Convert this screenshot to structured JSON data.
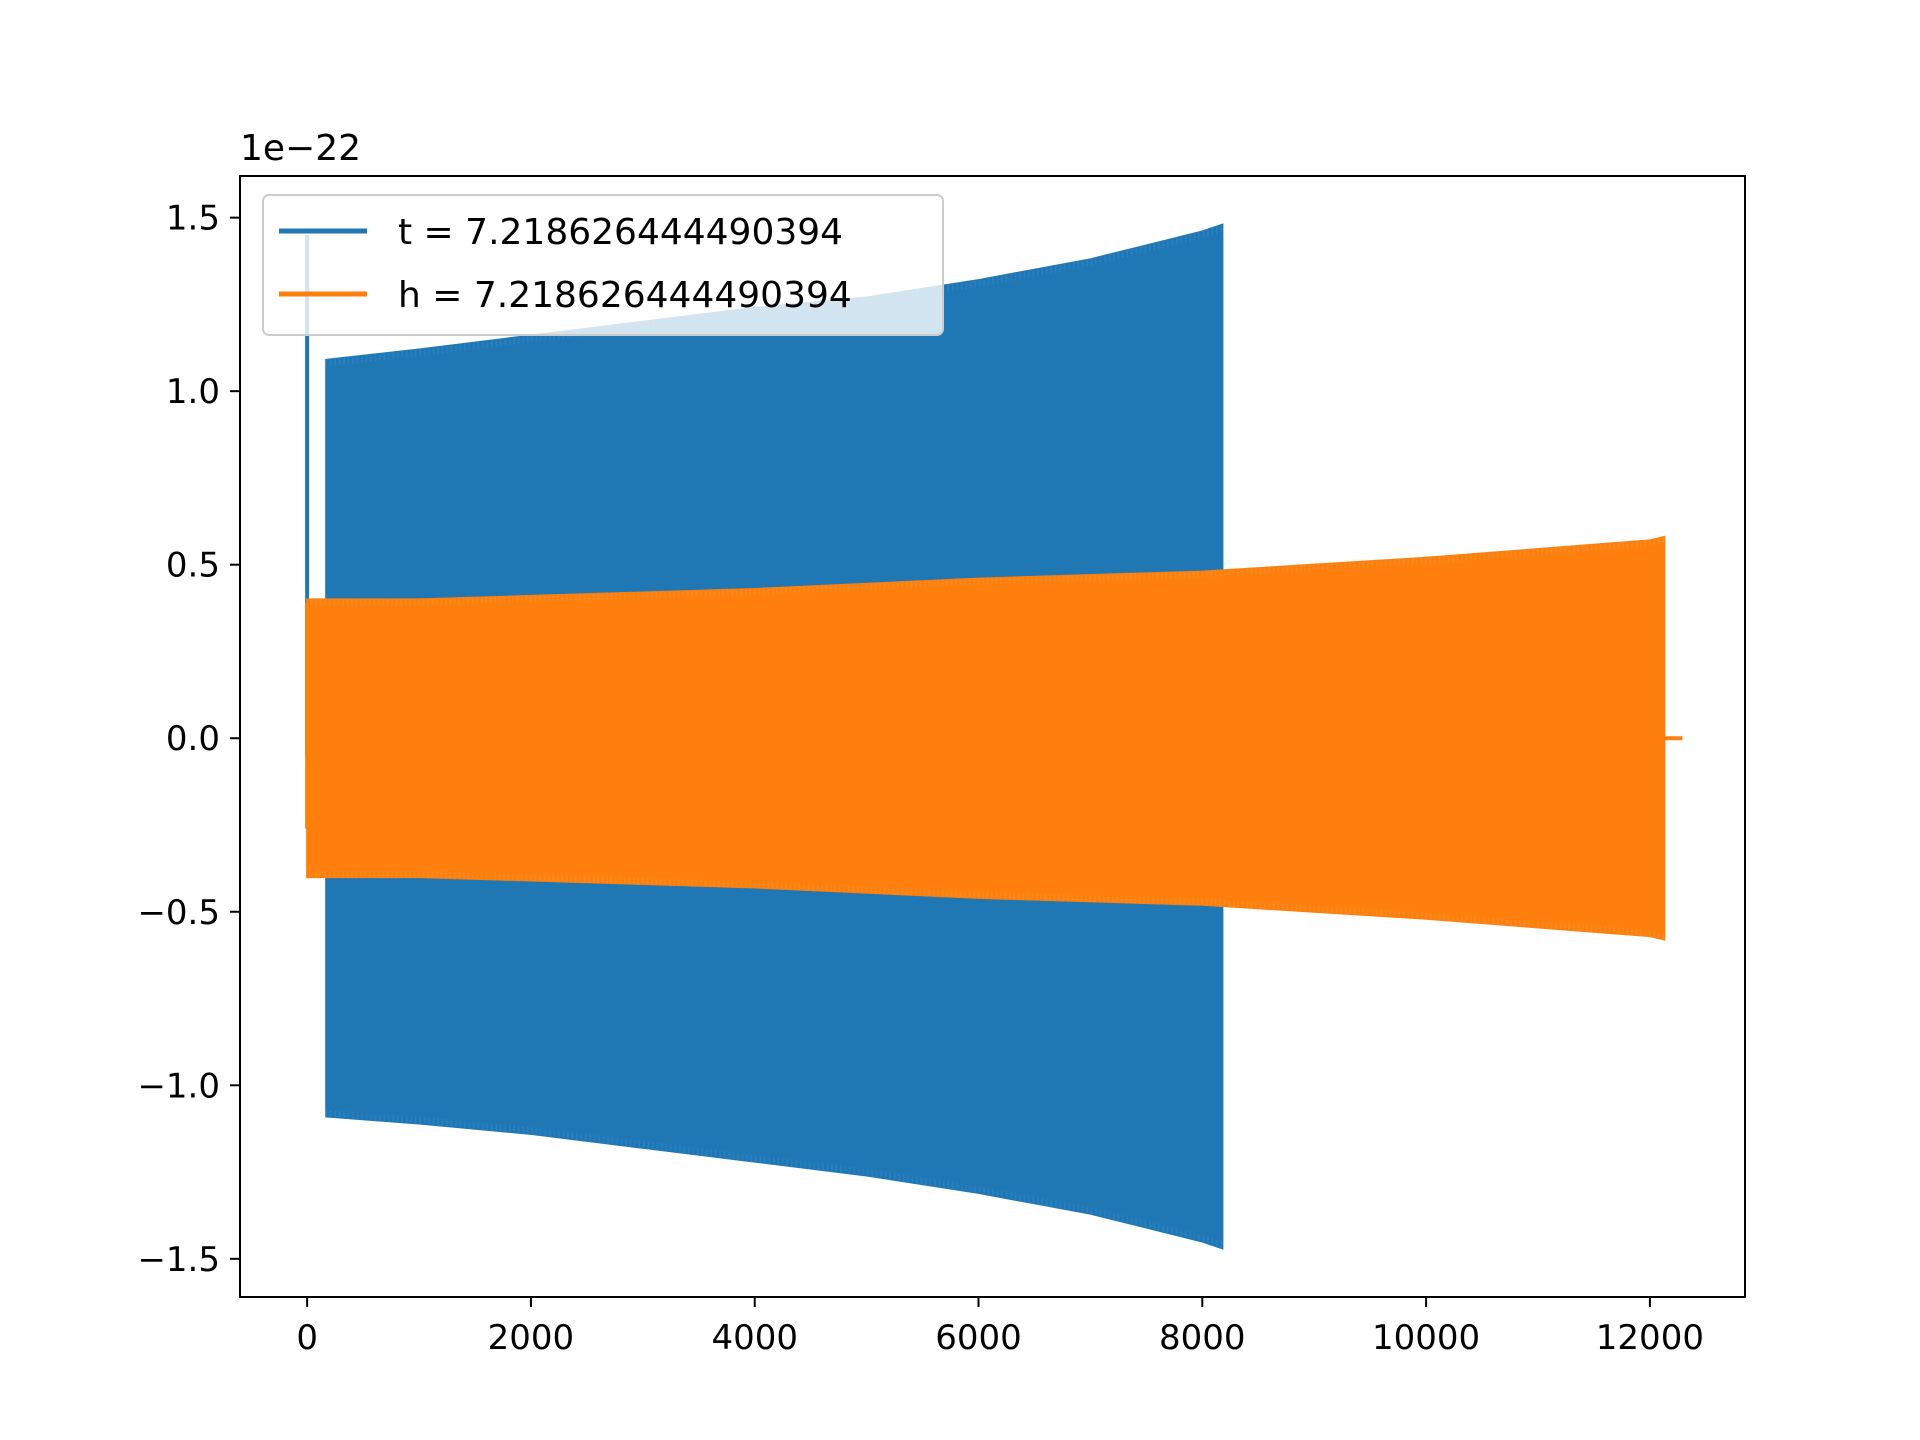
{
  "chart_data": {
    "type": "line",
    "offset_text": "1e−22",
    "xlim": [
      -600,
      12850
    ],
    "ylim": [
      -1.61,
      1.62
    ],
    "x_ticks": [
      0,
      2000,
      4000,
      6000,
      8000,
      10000,
      12000
    ],
    "x_tick_labels": [
      "0",
      "2000",
      "4000",
      "6000",
      "8000",
      "10000",
      "12000"
    ],
    "y_ticks": [
      -1.5,
      -1.0,
      -0.5,
      0.0,
      0.5,
      1.0,
      1.5
    ],
    "y_tick_labels": [
      "−1.5",
      "−1.0",
      "−0.5",
      "0.0",
      "0.5",
      "1.0",
      "1.5"
    ],
    "grid": false,
    "legend_position": "top-left",
    "series": [
      {
        "name": "t = 7.218626444490394",
        "color": "#1f77b4",
        "envelope_upper": [
          [
            0,
            1.45
          ],
          [
            170,
            1.09
          ],
          [
            1000,
            1.12
          ],
          [
            2000,
            1.16
          ],
          [
            3000,
            1.2
          ],
          [
            4000,
            1.24
          ],
          [
            5000,
            1.27
          ],
          [
            6000,
            1.32
          ],
          [
            7000,
            1.38
          ],
          [
            8000,
            1.46
          ],
          [
            8180,
            1.48
          ]
        ],
        "envelope_lower": [
          [
            0,
            -1.45
          ],
          [
            170,
            -1.09
          ],
          [
            1000,
            -1.11
          ],
          [
            2000,
            -1.14
          ],
          [
            3000,
            -1.18
          ],
          [
            4000,
            -1.22
          ],
          [
            5000,
            -1.26
          ],
          [
            6000,
            -1.31
          ],
          [
            7000,
            -1.37
          ],
          [
            8000,
            -1.45
          ],
          [
            8180,
            -1.47
          ]
        ],
        "gap_x": [
          20,
          170
        ]
      },
      {
        "name": "h = 7.218626444490394",
        "color": "#ff7f0e",
        "envelope_upper": [
          [
            0,
            0.4
          ],
          [
            1000,
            0.4
          ],
          [
            2000,
            0.41
          ],
          [
            4000,
            0.43
          ],
          [
            6000,
            0.46
          ],
          [
            8000,
            0.48
          ],
          [
            10000,
            0.52
          ],
          [
            12000,
            0.57
          ],
          [
            12130,
            0.58
          ]
        ],
        "envelope_lower": [
          [
            0,
            -0.4
          ],
          [
            1000,
            -0.4
          ],
          [
            2000,
            -0.41
          ],
          [
            4000,
            -0.43
          ],
          [
            6000,
            -0.46
          ],
          [
            8000,
            -0.48
          ],
          [
            10000,
            -0.52
          ],
          [
            12000,
            -0.57
          ],
          [
            12130,
            -0.58
          ]
        ],
        "start_spike": [
          -0.26,
          0.39
        ],
        "tail_x": [
          12130,
          12290
        ],
        "tail_y": 0.0
      }
    ]
  }
}
